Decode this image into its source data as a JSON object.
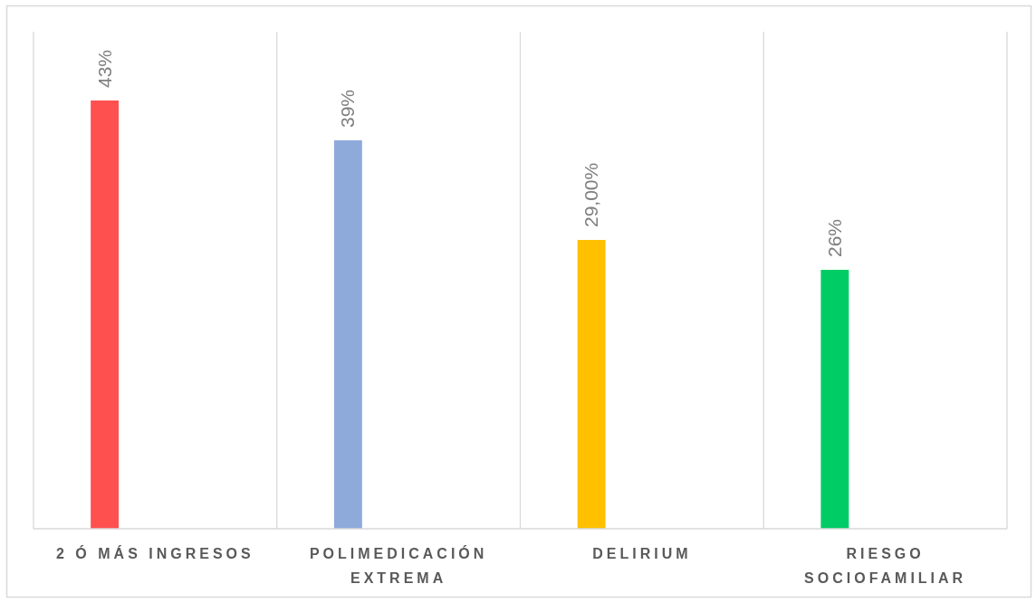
{
  "chart_data": {
    "type": "bar",
    "categories": [
      "2 Ó MÁS INGRESOS",
      "POLIMEDICACIÓN EXTREMA",
      "DELIRIUM",
      "RIESGO SOCIOFAMILIAR"
    ],
    "values": [
      43,
      39,
      29,
      26
    ],
    "colors": [
      "#ff5050",
      "#8eaadb",
      "#ffc000",
      "#00cc66"
    ],
    "value_labels": [
      "43%",
      "39%",
      "29,00%",
      "26%"
    ],
    "grid": "x"
  }
}
